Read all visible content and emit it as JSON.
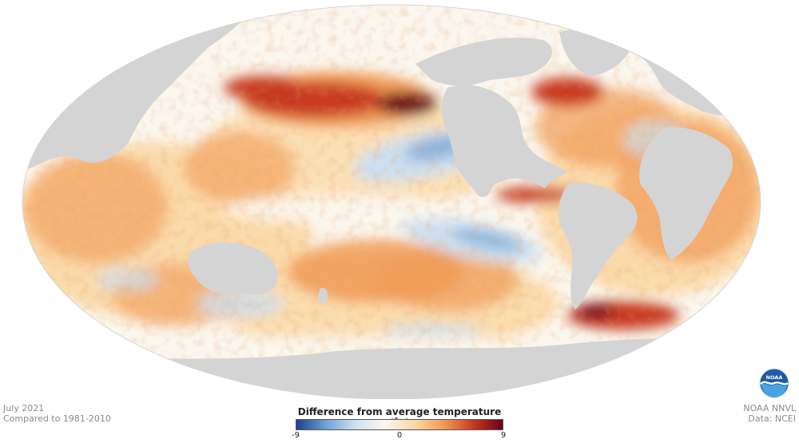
{
  "map": {
    "projection": "mollweide",
    "colors": {
      "land": "#d4d4d4",
      "ocean_neutral": "#fbf7ee",
      "cold_strong": "#1c3f8c",
      "cold_mid": "#6da3d5",
      "cold_light": "#cde0f0",
      "warm_light": "#fbd9a6",
      "warm_mid": "#f19b55",
      "warm_strong": "#c83a22",
      "warm_extreme": "#6b0019"
    }
  },
  "meta": {
    "date": "July 2021",
    "baseline": "Compared to 1981-2010",
    "credit": "NOAA NNVL",
    "source": "Data: NCEI"
  },
  "legend": {
    "title": "Difference from average temperature (˚F)",
    "ticks": [
      {
        "label": "-9",
        "value": -9
      },
      {
        "label": "0",
        "value": 0
      },
      {
        "label": "9",
        "value": 9
      }
    ],
    "range": [
      -9,
      9
    ]
  },
  "logo": {
    "text": "NOAA",
    "icon": "noaa-logo-icon"
  }
}
